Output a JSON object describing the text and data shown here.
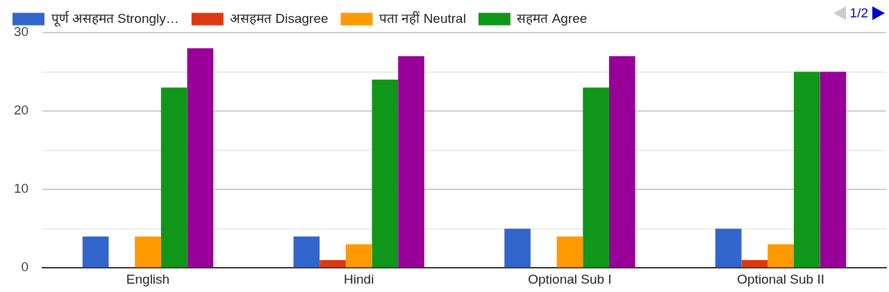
{
  "chart_data": {
    "type": "bar",
    "categories": [
      "English",
      "Hindi",
      "Optional Sub I",
      "Optional Sub II"
    ],
    "series": [
      {
        "name": "पूर्ण असहमत Strongly…",
        "color": "#3366cc",
        "values": [
          4,
          4,
          5,
          5
        ]
      },
      {
        "name": "असहमत Disagree",
        "color": "#dc3912",
        "values": [
          0,
          1,
          0,
          1
        ]
      },
      {
        "name": "पता नहीं Neutral",
        "color": "#ff9900",
        "values": [
          4,
          3,
          4,
          3
        ]
      },
      {
        "name": "सहमत Agree",
        "color": "#109618",
        "values": [
          23,
          24,
          23,
          25
        ]
      },
      {
        "color": "#990099",
        "values": [
          28,
          27,
          27,
          25
        ]
      }
    ],
    "ylim": [
      0,
      30
    ],
    "yticks": [
      0,
      {
        "value": 5,
        "label": null
      },
      10,
      {
        "value": 15,
        "label": null
      },
      20,
      {
        "value": 25,
        "label": null
      },
      30
    ],
    "grid": "y",
    "legend": "top",
    "annotations": [
      "1/2"
    ]
  }
}
